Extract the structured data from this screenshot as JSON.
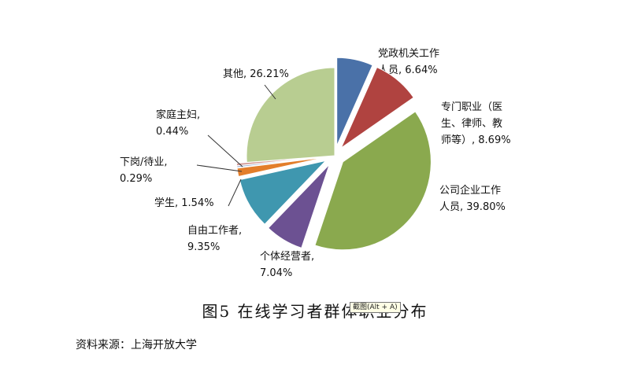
{
  "chart_data": {
    "type": "pie",
    "title": "",
    "slices": [
      {
        "label_lines": [
          "党政机关工作",
          "人员, 6.64%"
        ],
        "value": 6.64,
        "color": "#4a71a8",
        "exploded": true
      },
      {
        "label_lines": [
          "专门职业（医",
          "生、律师、教",
          "师等）, 8.69%"
        ],
        "value": 8.69,
        "color": "#b04340",
        "exploded": true
      },
      {
        "label_lines": [
          "公司企业工作",
          "人员, 39.80%"
        ],
        "value": 39.8,
        "color": "#8aa94e",
        "exploded": true
      },
      {
        "label_lines": [
          "个体经营者,",
          "7.04%"
        ],
        "value": 7.04,
        "color": "#6c5192",
        "exploded": true
      },
      {
        "label_lines": [
          "自由工作者,",
          "9.35%"
        ],
        "value": 9.35,
        "color": "#3f97af",
        "exploded": true
      },
      {
        "label_lines": [
          "学生, 1.54%"
        ],
        "value": 1.54,
        "color": "#e37e2b",
        "exploded": true
      },
      {
        "label_lines": [
          "下岗/待业,",
          "0.29%"
        ],
        "value": 0.29,
        "color": "#9aaed2",
        "exploded": true
      },
      {
        "label_lines": [
          "家庭主妇,",
          "0.44%"
        ],
        "value": 0.44,
        "color": "#d29a97",
        "exploded": true
      },
      {
        "label_lines": [
          "其他, 26.21%"
        ],
        "value": 26.21,
        "color": "#b8cd91",
        "exploded": false
      }
    ]
  },
  "caption": "图5 在线学习者群体职业分布",
  "tooltip": "截图(Alt + A)",
  "source": "资料来源：上海开放大学"
}
